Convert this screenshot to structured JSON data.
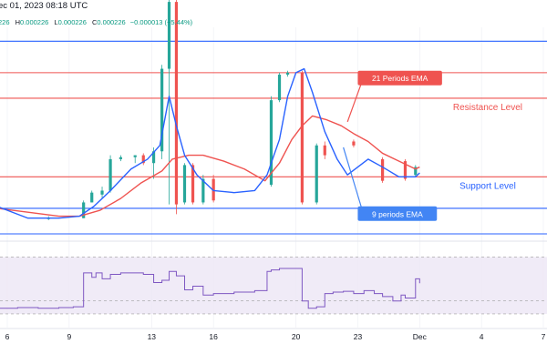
{
  "header": {
    "text": "ec 01, 2023 08:18 UTC",
    "ohlc": [
      {
        "label": "226",
        "value": ""
      },
      {
        "label": "H",
        "value": "0.000226"
      },
      {
        "label": "L",
        "value": "0.000226"
      },
      {
        "label": "C",
        "value": "0.000226"
      },
      {
        "label": "",
        "value": "−0.000013 (−5.44%)"
      }
    ],
    "colors": {
      "text": "#131722",
      "value": "#089981",
      "neg": "#f23645"
    }
  },
  "chart_data": {
    "type": "line",
    "x_ticks": [
      "6",
      "9",
      "13",
      "16",
      "20",
      "23",
      "Dec",
      "4",
      "7"
    ],
    "x_tick_days": [
      6,
      9,
      13,
      16,
      20,
      23,
      26,
      29,
      32
    ],
    "xlim": [
      5.5,
      32
    ],
    "price_ylim": [
      0,
      100
    ],
    "rsi_ylim": [
      0,
      100
    ],
    "colors": {
      "up": "#26a69a",
      "down": "#ef5350",
      "ema9": "#2962ff",
      "ema21": "#ef5350",
      "resistance": "#ef5350",
      "support": "#2962ff",
      "rsi": "#7e57c2",
      "rsi_band": "#ede7f6",
      "grid": "#e0e3eb"
    },
    "horizontal_lines": [
      {
        "y": 98,
        "color": "#2962ff"
      },
      {
        "y": 82,
        "color": "#ef5350"
      },
      {
        "y": 69,
        "color": "#ef5350"
      },
      {
        "y": 29,
        "color": "#ef5350"
      },
      {
        "y": 13,
        "color": "#2962ff"
      },
      {
        "y": 0,
        "color": "#2962ff"
      }
    ],
    "annotations": [
      {
        "text": "21 Periods EMA",
        "style": "callout-red",
        "day": 23,
        "y": 83,
        "point_day": 22.5,
        "point_y": 57
      },
      {
        "text": "Resistance Level",
        "style": "label-red",
        "day": 29.3,
        "y": 63
      },
      {
        "text": "Support Level",
        "style": "label-blue",
        "day": 29.3,
        "y": 23
      },
      {
        "text": "9 periods EMA",
        "style": "callout-blue",
        "day": 23,
        "y": 14,
        "point_day": 22.3,
        "point_y": 44
      }
    ],
    "candles": [
      {
        "day": 5.5,
        "o": 14,
        "h": 15,
        "l": 13,
        "c": 14
      },
      {
        "day": 8,
        "o": 8,
        "h": 9,
        "l": 7,
        "c": 8
      },
      {
        "day": 9.7,
        "o": 8,
        "h": 17,
        "l": 8,
        "c": 16
      },
      {
        "day": 10.1,
        "o": 16,
        "h": 22,
        "l": 16,
        "c": 21
      },
      {
        "day": 10.6,
        "o": 20,
        "h": 24,
        "l": 18,
        "c": 22
      },
      {
        "day": 11,
        "o": 22,
        "h": 40,
        "l": 21,
        "c": 38
      },
      {
        "day": 11.5,
        "o": 38,
        "h": 40,
        "l": 37,
        "c": 39
      },
      {
        "day": 12.2,
        "o": 39,
        "h": 40,
        "l": 36,
        "c": 40
      },
      {
        "day": 12.6,
        "o": 40,
        "h": 41,
        "l": 35,
        "c": 36
      },
      {
        "day": 13.1,
        "o": 36,
        "h": 44,
        "l": 28,
        "c": 42
      },
      {
        "day": 13.5,
        "o": 42,
        "h": 86,
        "l": 38,
        "c": 84
      },
      {
        "day": 13.85,
        "o": 84,
        "h": 120,
        "l": 15,
        "c": 118
      },
      {
        "day": 14.2,
        "o": 118,
        "h": 120,
        "l": 10,
        "c": 15
      },
      {
        "day": 14.6,
        "o": 16,
        "h": 36,
        "l": 15,
        "c": 35
      },
      {
        "day": 15,
        "o": 35,
        "h": 36,
        "l": 15,
        "c": 16
      },
      {
        "day": 15.5,
        "o": 16,
        "h": 30,
        "l": 15,
        "c": 28
      },
      {
        "day": 16,
        "o": 28,
        "h": 30,
        "l": 16,
        "c": 17
      },
      {
        "day": 18.8,
        "o": 25,
        "h": 70,
        "l": 24,
        "c": 68
      },
      {
        "day": 19.2,
        "o": 68,
        "h": 82,
        "l": 67,
        "c": 81
      },
      {
        "day": 19.6,
        "o": 81,
        "h": 83,
        "l": 80,
        "c": 82
      },
      {
        "day": 20.3,
        "o": 82,
        "h": 83,
        "l": 15,
        "c": 16
      },
      {
        "day": 21,
        "o": 16,
        "h": 46,
        "l": 15,
        "c": 45
      },
      {
        "day": 21.4,
        "o": 45,
        "h": 47,
        "l": 38,
        "c": 40
      },
      {
        "day": 22.8,
        "o": 47,
        "h": 48,
        "l": 44,
        "c": 45
      },
      {
        "day": 24.2,
        "o": 38,
        "h": 39,
        "l": 26,
        "c": 27
      },
      {
        "day": 25.3,
        "o": 37,
        "h": 38,
        "l": 27,
        "c": 28
      },
      {
        "day": 25.8,
        "o": 30,
        "h": 35,
        "l": 29,
        "c": 34
      }
    ],
    "ema9": {
      "day": [
        5.5,
        7,
        8.5,
        9.5,
        10.2,
        11,
        12,
        12.8,
        13.4,
        13.85,
        14.2,
        14.6,
        15.2,
        16,
        17,
        18,
        18.6,
        19.2,
        19.6,
        20,
        20.4,
        20.8,
        21.4,
        22,
        22.5,
        23,
        23.5,
        24.2,
        25,
        25.8,
        26
      ],
      "y": [
        14,
        8,
        8,
        9,
        14,
        22,
        33,
        38,
        45,
        70,
        55,
        40,
        30,
        22,
        21,
        22,
        30,
        48,
        70,
        82,
        84,
        72,
        52,
        38,
        30,
        34,
        38,
        34,
        29,
        29,
        31
      ]
    },
    "ema21": {
      "day": [
        5.5,
        7,
        8.5,
        9.5,
        10.5,
        11.5,
        12.5,
        13.5,
        14,
        14.8,
        15.5,
        16.5,
        17.5,
        18.5,
        19.2,
        19.8,
        20.3,
        20.8,
        21.5,
        22.2,
        22.8,
        23.5,
        24.2,
        25,
        25.8,
        26
      ],
      "y": [
        13,
        11,
        9,
        9,
        12,
        18,
        26,
        32,
        38,
        40,
        40,
        37,
        33,
        27,
        36,
        48,
        55,
        60,
        58,
        55,
        51,
        47,
        41,
        37,
        33,
        34
      ]
    },
    "rsi": {
      "lines": [
        40,
        60
      ],
      "day": [
        5.5,
        6.5,
        7.5,
        8.5,
        9.2,
        9.5,
        9.7,
        10.1,
        10.3,
        10.6,
        11,
        11.5,
        12.2,
        12.6,
        13.1,
        13.5,
        13.85,
        14.2,
        14.6,
        15,
        15.5,
        16,
        17,
        18,
        18.6,
        18.8,
        19.2,
        19.6,
        20,
        20.3,
        20.6,
        21,
        21.4,
        21.8,
        22.3,
        22.8,
        23.3,
        23.8,
        24.2,
        24.7,
        25.1,
        25.3,
        25.8,
        26
      ],
      "y": [
        20,
        21,
        20,
        21,
        22,
        22,
        68,
        62,
        68,
        60,
        66,
        68,
        68,
        66,
        55,
        58,
        70,
        64,
        45,
        50,
        38,
        40,
        42,
        44,
        70,
        72,
        74,
        74,
        74,
        30,
        20,
        22,
        40,
        42,
        43,
        40,
        44,
        40,
        36,
        30,
        38,
        34,
        60,
        54
      ]
    }
  }
}
